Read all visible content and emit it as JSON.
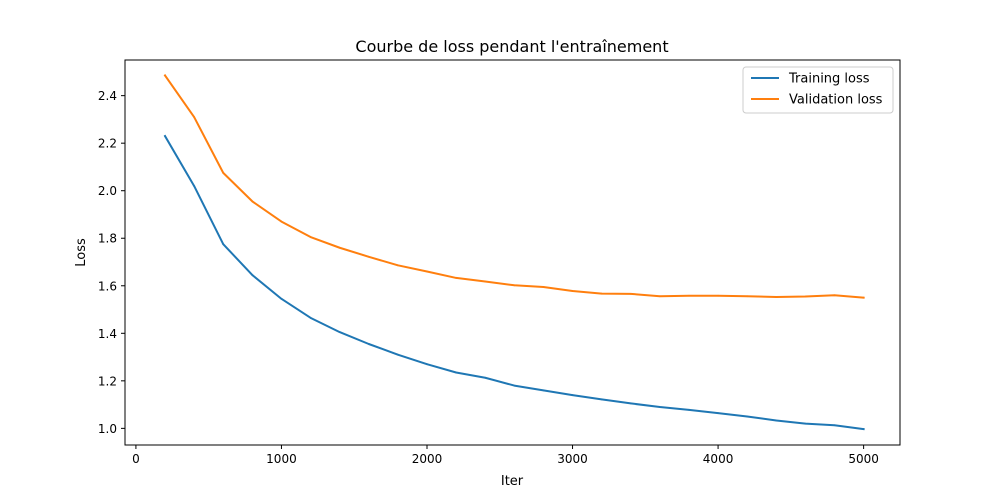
{
  "chart_data": {
    "type": "line",
    "title": "Courbe de loss pendant l'entraînement",
    "xlabel": "Iter",
    "ylabel": "Loss",
    "xlim": [
      -75,
      5250
    ],
    "ylim": [
      0.93,
      2.55
    ],
    "x_ticks": [
      0,
      1000,
      2000,
      3000,
      4000,
      5000
    ],
    "x_tick_labels": [
      "0",
      "1000",
      "2000",
      "3000",
      "4000",
      "5000"
    ],
    "y_ticks": [
      1.0,
      1.2,
      1.4,
      1.6,
      1.8,
      2.0,
      2.2,
      2.4
    ],
    "y_tick_labels": [
      "1.0",
      "1.2",
      "1.4",
      "1.6",
      "1.8",
      "2.0",
      "2.2",
      "2.4"
    ],
    "grid": false,
    "legend_position": "top-right",
    "x": [
      200,
      400,
      600,
      800,
      1000,
      1200,
      1400,
      1600,
      1800,
      2000,
      2200,
      2400,
      2600,
      2800,
      3000,
      3200,
      3400,
      3600,
      3800,
      4000,
      4200,
      4400,
      4600,
      4800,
      5000
    ],
    "series": [
      {
        "name": "Training loss",
        "color": "#1f77b4",
        "values": [
          2.23,
          2.02,
          1.775,
          1.645,
          1.545,
          1.465,
          1.405,
          1.355,
          1.31,
          1.27,
          1.235,
          1.213,
          1.18,
          1.16,
          1.14,
          1.122,
          1.105,
          1.09,
          1.078,
          1.064,
          1.05,
          1.033,
          1.02,
          1.013,
          0.997
        ]
      },
      {
        "name": "Validation loss",
        "color": "#ff7f0e",
        "values": [
          2.485,
          2.31,
          2.075,
          1.955,
          1.87,
          1.805,
          1.76,
          1.722,
          1.686,
          1.66,
          1.633,
          1.618,
          1.602,
          1.595,
          1.578,
          1.567,
          1.566,
          1.556,
          1.558,
          1.558,
          1.556,
          1.553,
          1.555,
          1.56,
          1.55
        ]
      }
    ]
  }
}
